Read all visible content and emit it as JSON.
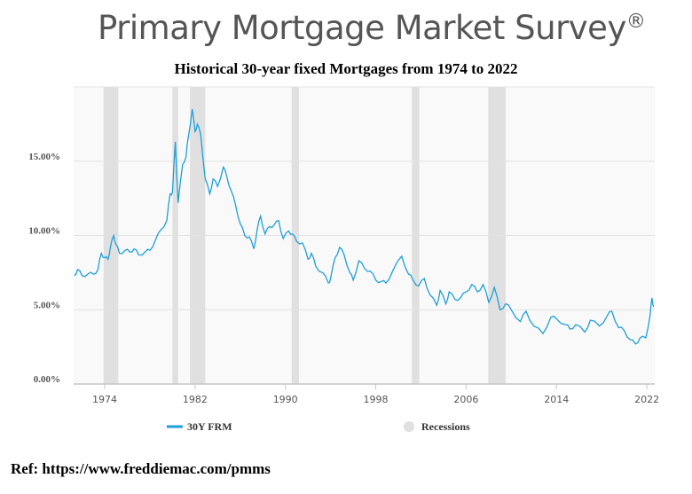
{
  "header": {
    "brand": "Primary Mortgage Market Survey",
    "brand_mark": "®"
  },
  "footer": {
    "ref": "Ref: https://www.freddiemac.com/pmms"
  },
  "colors": {
    "line": "#1f9fd8",
    "recession": "#e0e0e0",
    "plot_bg": "#f9f9f9",
    "grid": "#e2e2e2"
  },
  "chart_data": {
    "type": "line",
    "title": "Historical 30-year fixed Mortgages from 1974 to 2022",
    "xlabel": "",
    "ylabel": "",
    "xlim": [
      1971.25,
      2022.7
    ],
    "ylim": [
      0,
      20
    ],
    "x_ticks": [
      1974,
      1982,
      1990,
      1998,
      2006,
      2014,
      2022
    ],
    "x_tick_labels": [
      "1974",
      "1982",
      "1990",
      "1998",
      "2006",
      "2014",
      "2022"
    ],
    "y_ticks": [
      0,
      5,
      10,
      15
    ],
    "y_tick_labels": [
      "0.00%",
      "5.00%",
      "10.00%",
      "15.00%"
    ],
    "grid": true,
    "legend": {
      "placement": "bottom",
      "entries": [
        "30Y FRM",
        "Recessions"
      ]
    },
    "recessions": [
      [
        1973.9,
        1975.2
      ],
      [
        1980.0,
        1980.5
      ],
      [
        1981.55,
        1982.9
      ],
      [
        1990.55,
        1991.2
      ],
      [
        2001.2,
        2001.85
      ],
      [
        2007.95,
        2009.5
      ]
    ],
    "series": [
      {
        "name": "30Y FRM",
        "x": [
          1971.3,
          1971.6,
          1972.0,
          1972.5,
          1973.0,
          1973.4,
          1973.7,
          1974.0,
          1974.3,
          1974.5,
          1974.8,
          1975.0,
          1975.3,
          1975.8,
          1976.2,
          1976.6,
          1977.0,
          1977.6,
          1978.0,
          1978.5,
          1979.0,
          1979.5,
          1979.8,
          1980.0,
          1980.25,
          1980.5,
          1980.9,
          1981.2,
          1981.4,
          1981.75,
          1982.0,
          1982.2,
          1982.5,
          1982.9,
          1983.3,
          1983.6,
          1984.0,
          1984.5,
          1984.8,
          1985.2,
          1985.6,
          1986.0,
          1986.4,
          1986.8,
          1987.2,
          1987.5,
          1987.8,
          1988.2,
          1988.6,
          1989.0,
          1989.4,
          1989.8,
          1990.3,
          1990.6,
          1991.0,
          1991.5,
          1992.0,
          1992.3,
          1992.7,
          1993.3,
          1993.8,
          1994.0,
          1994.4,
          1994.8,
          1995.2,
          1995.7,
          1996.0,
          1996.5,
          1997.0,
          1997.5,
          1998.0,
          1998.5,
          1998.9,
          1999.5,
          2000.3,
          2000.9,
          2001.3,
          2001.8,
          2002.3,
          2002.8,
          2003.4,
          2003.7,
          2004.2,
          2004.5,
          2005.0,
          2005.5,
          2006.0,
          2006.5,
          2007.0,
          2007.5,
          2008.0,
          2008.5,
          2009.0,
          2009.5,
          2010.0,
          2010.8,
          2011.3,
          2012.0,
          2012.8,
          2013.5,
          2014.0,
          2014.8,
          2015.2,
          2015.7,
          2016.5,
          2017.0,
          2017.8,
          2018.5,
          2018.9,
          2019.5,
          2020.0,
          2020.5,
          2021.0,
          2021.4,
          2021.9,
          2022.3,
          2022.45,
          2022.6
        ],
        "values": [
          7.3,
          7.7,
          7.3,
          7.4,
          7.4,
          7.7,
          8.8,
          8.5,
          8.4,
          9.2,
          10.0,
          9.4,
          8.8,
          9.0,
          8.9,
          9.1,
          8.7,
          8.9,
          9.0,
          9.7,
          10.4,
          11.0,
          12.8,
          12.9,
          16.3,
          12.2,
          14.8,
          15.3,
          16.6,
          18.5,
          17.0,
          17.5,
          16.8,
          13.8,
          12.8,
          13.8,
          13.3,
          14.6,
          14.0,
          13.0,
          12.0,
          10.8,
          10.0,
          9.9,
          9.1,
          10.4,
          11.3,
          10.1,
          10.6,
          10.7,
          11.0,
          9.8,
          10.3,
          10.1,
          9.6,
          9.5,
          8.4,
          8.8,
          7.9,
          7.5,
          6.8,
          7.1,
          8.5,
          9.2,
          8.7,
          7.5,
          7.0,
          8.3,
          7.8,
          7.6,
          7.0,
          6.9,
          6.8,
          7.6,
          8.6,
          7.4,
          7.0,
          6.6,
          7.1,
          6.0,
          5.3,
          6.3,
          5.4,
          6.2,
          5.7,
          5.8,
          6.2,
          6.7,
          6.2,
          6.7,
          5.5,
          6.5,
          5.0,
          5.4,
          5.0,
          4.2,
          4.9,
          3.9,
          3.4,
          4.5,
          4.4,
          4.0,
          3.7,
          4.0,
          3.5,
          4.3,
          3.9,
          4.6,
          4.9,
          3.8,
          3.6,
          3.0,
          2.7,
          3.1,
          3.1,
          4.7,
          5.8,
          5.2
        ]
      }
    ]
  }
}
